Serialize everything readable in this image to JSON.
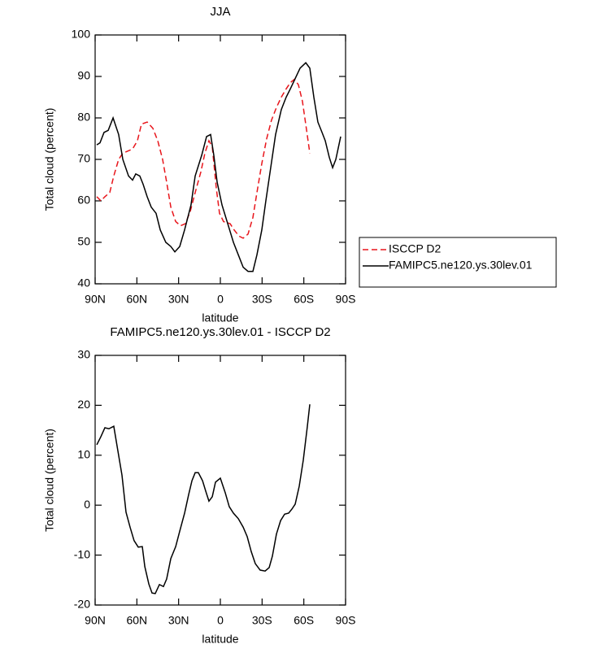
{
  "chart_data": [
    {
      "type": "line",
      "title": "JJA",
      "xlabel": "latitude",
      "ylabel": "Total cloud (percent)",
      "xlim": [
        90,
        -90
      ],
      "ylim": [
        40,
        100
      ],
      "xticks": [
        {
          "value": 90,
          "label": "90N"
        },
        {
          "value": 60,
          "label": "60N"
        },
        {
          "value": 30,
          "label": "30N"
        },
        0,
        {
          "value": -30,
          "label": "30S"
        },
        {
          "value": -60,
          "label": "60S"
        },
        {
          "value": -90,
          "label": "90S"
        }
      ],
      "yticks": [
        40,
        50,
        60,
        70,
        80,
        90,
        100
      ],
      "legend": "right",
      "series": [
        {
          "name": "ISCCP D2",
          "color": "#e8151b",
          "dashed": true,
          "x": [
            88.8,
            85.9,
            83,
            79.5,
            76.6,
            73.1,
            70.1,
            66.6,
            63.1,
            59.6,
            56.7,
            52.6,
            48.5,
            45,
            41.5,
            38.6,
            35.6,
            32.1,
            28.6,
            25.1,
            21.6,
            18.1,
            14,
            11.1,
            8.2,
            5.8,
            2.9,
            0.6,
            -2.3,
            -7,
            -9.9,
            -13.4,
            -16.4,
            -19.9,
            -23.4,
            -26.3,
            -29.8,
            -33.3,
            -36.8,
            -40.3,
            -43.8,
            -47.3,
            -50.3,
            -53.2,
            -56.1,
            -59,
            -62,
            -64.3
          ],
          "values": [
            61,
            60,
            61,
            62,
            66,
            70,
            71.5,
            72,
            72.5,
            74.5,
            78.5,
            79,
            77.5,
            74.5,
            70,
            64.5,
            58.5,
            55,
            54,
            54.5,
            57.5,
            62,
            67,
            71.5,
            74.5,
            73,
            63,
            57,
            55,
            54.5,
            53,
            51.5,
            51,
            52,
            56,
            62,
            69,
            75,
            79.5,
            82.5,
            85,
            87,
            88.5,
            89.3,
            88,
            84,
            77,
            71.5
          ]
        },
        {
          "name": "FAMIPC5.ne120.ys.30lev.01",
          "color": "#000000",
          "dashed": false,
          "x": [
            88.8,
            86.5,
            83.6,
            80.6,
            77.1,
            73.1,
            70.1,
            66,
            63.1,
            60.8,
            57.9,
            55.5,
            52.6,
            49.7,
            46.2,
            43.2,
            39.2,
            35.6,
            32.7,
            29.2,
            25.7,
            21.1,
            18.1,
            13.4,
            9.9,
            7,
            4.7,
            2.3,
            -1.2,
            -5.3,
            -9.4,
            -12.9,
            -16.4,
            -19.9,
            -23.4,
            -26.3,
            -29.8,
            -32.7,
            -36.2,
            -39.7,
            -43.8,
            -47.3,
            -50.3,
            -53.8,
            -57.3,
            -61.4,
            -64.3,
            -67.2,
            -70.1,
            -73.1,
            -75.4,
            -78.3,
            -80.7,
            -83,
            -86.5
          ],
          "values": [
            73.5,
            74,
            76.5,
            77,
            80,
            76,
            70,
            66,
            65,
            66.5,
            66,
            64,
            61,
            58.5,
            57,
            53,
            50,
            49,
            47.7,
            49,
            53,
            59,
            66,
            71,
            75.5,
            76,
            71,
            64.5,
            59,
            54.5,
            50,
            47,
            44,
            43,
            43,
            47,
            53,
            60,
            68,
            76,
            82,
            85,
            87,
            89.5,
            92,
            93.3,
            92,
            85,
            79,
            76.5,
            74.5,
            70.5,
            68,
            70,
            75.5
          ]
        }
      ]
    },
    {
      "type": "line",
      "title": "FAMIPC5.ne120.ys.30lev.01 - ISCCP D2",
      "xlabel": "latitude",
      "ylabel": "Total cloud (percent)",
      "xlim": [
        90,
        -90
      ],
      "ylim": [
        -20,
        30
      ],
      "xticks": [
        {
          "value": 90,
          "label": "90N"
        },
        {
          "value": 60,
          "label": "60N"
        },
        {
          "value": 30,
          "label": "30N"
        },
        0,
        {
          "value": -30,
          "label": "30S"
        },
        {
          "value": -60,
          "label": "60S"
        },
        {
          "value": -90,
          "label": "90S"
        }
      ],
      "yticks": [
        -20,
        -10,
        0,
        10,
        20,
        30
      ],
      "series": [
        {
          "color": "#000000",
          "dashed": false,
          "x": [
            88.8,
            85.9,
            83,
            80.1,
            76.6,
            73.6,
            70.7,
            67.8,
            64.9,
            62,
            59,
            56.1,
            54.3,
            51.4,
            49.1,
            46.8,
            43.8,
            40.9,
            38.6,
            35.6,
            32.1,
            29.2,
            25.7,
            22.8,
            20.4,
            18.1,
            15.8,
            12.8,
            10.5,
            8.2,
            5.8,
            3.5,
            0,
            -3.5,
            -6.4,
            -9.4,
            -12.9,
            -16.4,
            -19.3,
            -22.2,
            -25.1,
            -28.6,
            -32.2,
            -35.1,
            -37.4,
            -40.3,
            -43.3,
            -46.2,
            -49.1,
            -51.4,
            -53.8,
            -56.7,
            -59.6,
            -62.5,
            -64.3
          ],
          "values": [
            12.1,
            13.7,
            15.5,
            15.3,
            15.8,
            10.8,
            6,
            -1.4,
            -4.4,
            -7.1,
            -8.4,
            -8.3,
            -12.3,
            -15.8,
            -17.6,
            -17.7,
            -15.9,
            -16.3,
            -14.8,
            -10.7,
            -8.3,
            -5.2,
            -1.6,
            2.1,
            4.9,
            6.5,
            6.5,
            4.9,
            2.8,
            0.8,
            1.7,
            4.6,
            5.4,
            2.5,
            -0.3,
            -1.6,
            -2.7,
            -4.4,
            -6.3,
            -9.3,
            -11.7,
            -13,
            -13.2,
            -12.5,
            -10.2,
            -5.8,
            -3.1,
            -1.8,
            -1.6,
            -0.8,
            0.2,
            3.8,
            9,
            15.7,
            20.2
          ]
        }
      ]
    }
  ]
}
